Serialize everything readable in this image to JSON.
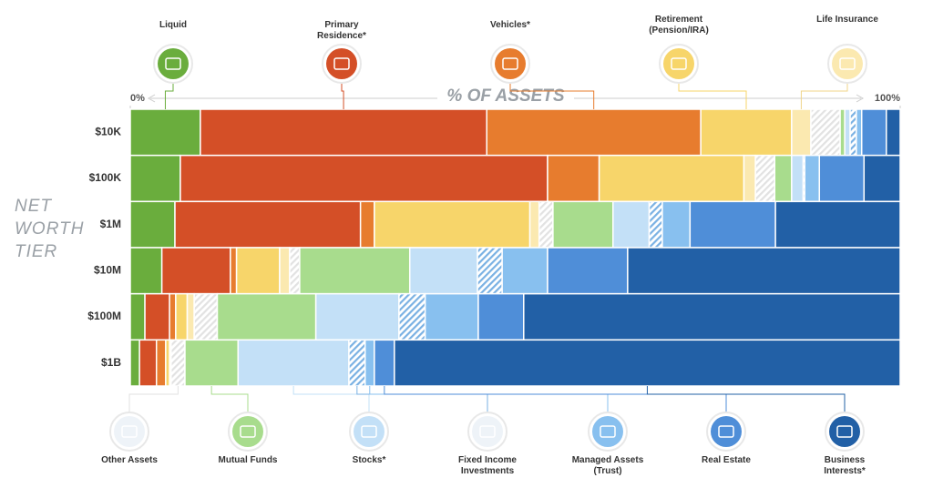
{
  "chart_data": {
    "type": "stacked-bar-100",
    "xlabel": "% OF ASSETS",
    "ylabel": "NET WORTH TIER",
    "xlim": [
      0,
      100
    ],
    "xticks": [
      {
        "value": 0,
        "label": "0%"
      },
      {
        "value": 100,
        "label": "100%"
      }
    ],
    "categories": [
      "$10K",
      "$100K",
      "$1M",
      "$10M",
      "$100M",
      "$1B"
    ],
    "series": [
      {
        "name": "Liquid",
        "color": "#6aad3d",
        "values": [
          9.1,
          6.5,
          5.8,
          4.1,
          1.9,
          1.2
        ]
      },
      {
        "name": "Primary Residence*",
        "color": "#d44f27",
        "values": [
          37.2,
          47.7,
          24.1,
          8.9,
          3.2,
          2.2
        ]
      },
      {
        "name": "Vehicles*",
        "color": "#e77c2e",
        "values": [
          27.8,
          6.7,
          1.8,
          0.8,
          0.8,
          1.2
        ]
      },
      {
        "name": "Retirement (Pension/IRA)",
        "color": "#f7d56a",
        "values": [
          11.8,
          18.8,
          20.2,
          5.6,
          1.5,
          0.5
        ]
      },
      {
        "name": "Life Insurance",
        "color": "#fbe9b0",
        "values": [
          2.5,
          1.5,
          1.2,
          1.3,
          0.9,
          0.2
        ]
      },
      {
        "name": "Other Assets",
        "color": "#e2e2e2",
        "hatch": true,
        "values": [
          3.8,
          2.5,
          1.8,
          1.3,
          3.0,
          1.8
        ]
      },
      {
        "name": "Mutual Funds",
        "color": "#a8dc8d",
        "values": [
          0.6,
          2.2,
          7.8,
          14.3,
          12.8,
          6.9
        ]
      },
      {
        "name": "Stocks*",
        "color": "#c3e0f7",
        "values": [
          0.7,
          1.5,
          4.7,
          8.8,
          10.8,
          14.4
        ]
      },
      {
        "name": "Fixed Income Investments",
        "color": "#7ab1e3",
        "hatch": true,
        "values": [
          0.8,
          0.2,
          1.7,
          3.2,
          3.4,
          2.1
        ]
      },
      {
        "name": "Managed Assets (Trust)",
        "color": "#88c0ef",
        "values": [
          0.7,
          1.9,
          3.6,
          5.9,
          6.9,
          1.2
        ]
      },
      {
        "name": "Real Estate",
        "color": "#4f8ed8",
        "values": [
          3.2,
          5.8,
          11.1,
          10.4,
          5.9,
          2.6
        ]
      },
      {
        "name": "Business Interests*",
        "color": "#2260a6",
        "values": [
          1.8,
          4.7,
          16.2,
          35.4,
          48.9,
          65.7
        ]
      }
    ]
  }
}
